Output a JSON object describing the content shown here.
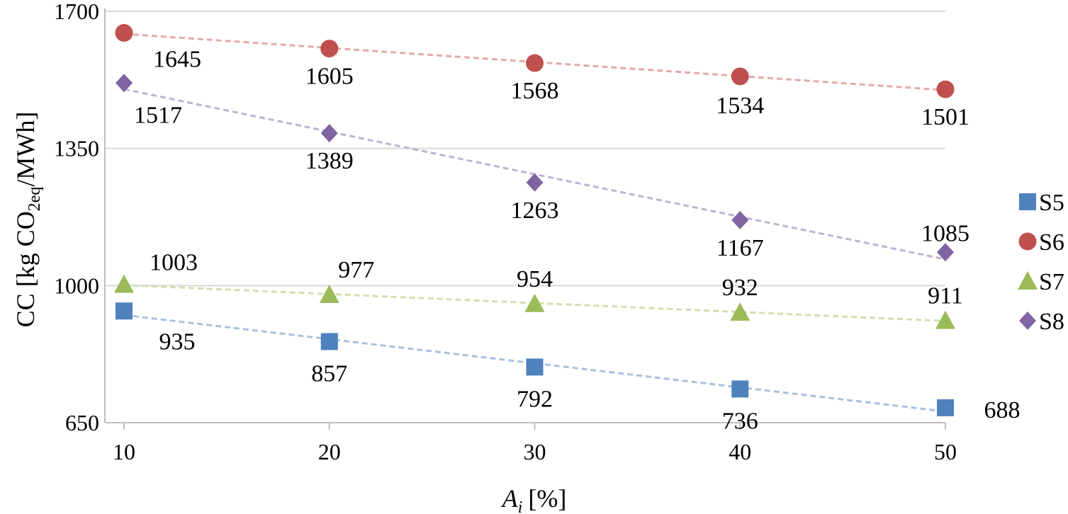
{
  "chart_data": {
    "type": "scatter",
    "title": "",
    "xlabel_main": "A",
    "xlabel_sub": "i",
    "xlabel_unit": "[%]",
    "ylabel_pre": "CC [kg CO",
    "ylabel_sub": "2eq",
    "ylabel_post": "/MWh]",
    "x": [
      10,
      20,
      30,
      40,
      50
    ],
    "x_tick_labels": [
      "10",
      "20",
      "30",
      "40",
      "50"
    ],
    "y_tick_labels": [
      "650",
      "1000",
      "1350",
      "1700"
    ],
    "y_ticks": [
      650,
      1000,
      1350,
      1700
    ],
    "xlim": [
      10,
      50
    ],
    "ylim": [
      650,
      1700
    ],
    "grid": "horizontal",
    "legend_position": "right",
    "trendlines": "linear, dashed",
    "series": [
      {
        "name": "S5",
        "marker": "square",
        "color": "#4f81bd",
        "trend_color": "#a7c0de",
        "values": [
          935,
          857,
          792,
          736,
          688
        ],
        "labels": [
          "935",
          "857",
          "792",
          "736",
          "688"
        ]
      },
      {
        "name": "S6",
        "marker": "circle",
        "color": "#c0504d",
        "trend_color": "#e5a8a7",
        "values": [
          1645,
          1605,
          1568,
          1534,
          1501
        ],
        "labels": [
          "1645",
          "1605",
          "1568",
          "1534",
          "1501"
        ]
      },
      {
        "name": "S7",
        "marker": "triangle",
        "color": "#9bbb59",
        "trend_color": "#cfe0ad",
        "values": [
          1003,
          977,
          954,
          932,
          911
        ],
        "labels": [
          "1003",
          "977",
          "954",
          "932",
          "911"
        ]
      },
      {
        "name": "S8",
        "marker": "diamond",
        "color": "#8064a2",
        "trend_color": "#c0b2d2",
        "values": [
          1517,
          1389,
          1263,
          1167,
          1085
        ],
        "labels": [
          "1517",
          "1389",
          "1263",
          "1167",
          "1085"
        ]
      }
    ]
  }
}
